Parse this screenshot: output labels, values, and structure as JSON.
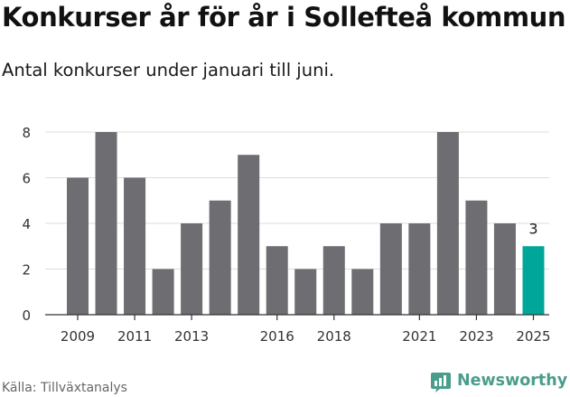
{
  "title": "Konkurser år för år i Sollefteå kommun",
  "subtitle": "Antal konkurser under januari till juni.",
  "source": "Källa: Tillväxtanalys",
  "logo": {
    "text": "Newsworthy",
    "icon": "newsworthy-chart-icon"
  },
  "colors": {
    "bar": "#6d6d72",
    "highlight": "#00a699",
    "grid": "#dddddd",
    "axis": "#333333",
    "brand": "#4a9d8c"
  },
  "chart_data": {
    "type": "bar",
    "categories": [
      "2009",
      "2010",
      "2011",
      "2012",
      "2013",
      "2014",
      "2015",
      "2016",
      "2017",
      "2018",
      "2019",
      "2020",
      "2021",
      "2022",
      "2023",
      "2024",
      "2025"
    ],
    "values": [
      6,
      8,
      6,
      2,
      4,
      5,
      7,
      3,
      2,
      3,
      2,
      4,
      4,
      8,
      5,
      4,
      3
    ],
    "tick_labels": [
      "2009",
      "2011",
      "2013",
      "2016",
      "2018",
      "2021",
      "2023",
      "2025"
    ],
    "y_ticks": [
      0,
      2,
      4,
      6,
      8
    ],
    "ylim": [
      0,
      8
    ],
    "highlight_category": "2025",
    "data_labels": [
      {
        "category": "2025",
        "text": "3"
      }
    ],
    "xlabel": "",
    "ylabel": "",
    "grid": true,
    "legend": "none"
  }
}
